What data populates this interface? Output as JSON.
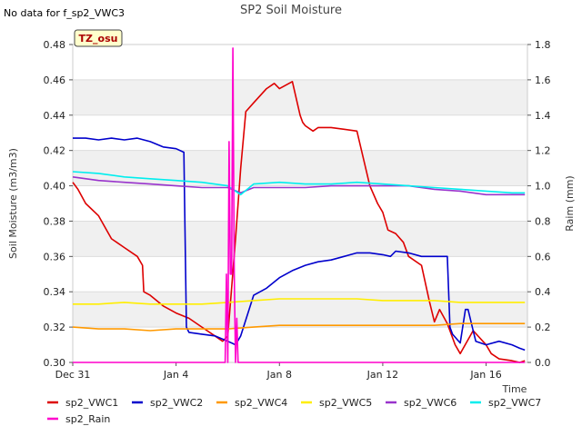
{
  "chart_data": {
    "type": "line",
    "title": "SP2 Soil Moisture",
    "nodata_note": "No data for f_sp2_VWC3",
    "site_label": "TZ_osu",
    "xlabel": "Time",
    "ylabel": "Soil Moisture (m3/m3)",
    "y2label": "Raim (mm)",
    "xlim": [
      0,
      17.6
    ],
    "ylim": [
      0.3,
      0.48
    ],
    "y2lim": [
      0.0,
      1.8
    ],
    "x_ticks": [
      {
        "value": 0,
        "label": "Dec 31"
      },
      {
        "value": 4,
        "label": "Jan 4"
      },
      {
        "value": 8,
        "label": "Jan 8"
      },
      {
        "value": 12,
        "label": "Jan 12"
      },
      {
        "value": 16,
        "label": "Jan 16"
      }
    ],
    "y_ticks": [
      "0.30",
      "0.32",
      "0.34",
      "0.36",
      "0.38",
      "0.40",
      "0.42",
      "0.44",
      "0.46",
      "0.48"
    ],
    "y2_ticks": [
      "0.0",
      "0.2",
      "0.4",
      "0.6",
      "0.8",
      "1.0",
      "1.2",
      "1.4",
      "1.6",
      "1.8"
    ],
    "grid": "horizontal bands",
    "legend_position": "bottom",
    "series": [
      {
        "name": "sp2_VWC1",
        "color": "#dd0000",
        "axis": "left",
        "x": [
          0,
          0.2,
          0.5,
          1,
          1.5,
          2,
          2.5,
          2.7,
          2.75,
          3,
          3.5,
          4,
          4.5,
          5,
          5.5,
          5.8,
          6,
          6.3,
          6.5,
          6.7,
          7,
          7.5,
          7.8,
          8,
          8.5,
          8.8,
          8.9,
          9,
          9.3,
          9.5,
          10,
          10.5,
          11,
          11.5,
          11.8,
          12,
          12.2,
          12.5,
          12.8,
          13,
          13.5,
          13.8,
          14,
          14.2,
          14.5,
          14.8,
          15,
          15.5,
          16,
          16.2,
          16.5,
          17,
          17.3,
          17.5
        ],
        "y": [
          0.402,
          0.398,
          0.39,
          0.383,
          0.37,
          0.365,
          0.36,
          0.355,
          0.34,
          0.338,
          0.332,
          0.328,
          0.325,
          0.32,
          0.315,
          0.312,
          0.315,
          0.37,
          0.41,
          0.442,
          0.447,
          0.455,
          0.458,
          0.455,
          0.459,
          0.44,
          0.436,
          0.434,
          0.431,
          0.433,
          0.433,
          0.432,
          0.431,
          0.4,
          0.39,
          0.385,
          0.375,
          0.373,
          0.368,
          0.36,
          0.355,
          0.335,
          0.323,
          0.33,
          0.322,
          0.31,
          0.305,
          0.318,
          0.31,
          0.305,
          0.302,
          0.301,
          0.3,
          0.301
        ]
      },
      {
        "name": "sp2_VWC2",
        "color": "#0000cc",
        "axis": "left",
        "x": [
          0,
          0.5,
          1,
          1.5,
          2,
          2.5,
          3,
          3.5,
          4,
          4.3,
          4.4,
          4.5,
          5,
          5.5,
          6,
          6.3,
          6.5,
          7,
          7.5,
          8,
          8.5,
          9,
          9.5,
          10,
          10.5,
          11,
          11.5,
          12,
          12.3,
          12.5,
          13,
          13.5,
          14,
          14.5,
          14.6,
          14.7,
          15,
          15.2,
          15.3,
          15.5,
          15.6,
          16,
          16.5,
          17,
          17.3,
          17.5
        ],
        "y": [
          0.427,
          0.427,
          0.426,
          0.427,
          0.426,
          0.427,
          0.425,
          0.422,
          0.421,
          0.419,
          0.32,
          0.317,
          0.316,
          0.315,
          0.312,
          0.31,
          0.315,
          0.338,
          0.342,
          0.348,
          0.352,
          0.355,
          0.357,
          0.358,
          0.36,
          0.362,
          0.362,
          0.361,
          0.36,
          0.363,
          0.362,
          0.36,
          0.36,
          0.36,
          0.32,
          0.316,
          0.311,
          0.33,
          0.33,
          0.318,
          0.312,
          0.31,
          0.312,
          0.31,
          0.308,
          0.307
        ]
      },
      {
        "name": "sp2_VWC4",
        "color": "#ff9900",
        "axis": "left",
        "x": [
          0,
          1,
          2,
          3,
          4,
          5,
          6,
          7,
          8,
          9,
          10,
          11,
          12,
          13,
          14,
          15,
          16,
          17,
          17.5
        ],
        "y": [
          0.32,
          0.319,
          0.319,
          0.318,
          0.319,
          0.319,
          0.319,
          0.32,
          0.321,
          0.321,
          0.321,
          0.321,
          0.321,
          0.321,
          0.321,
          0.322,
          0.322,
          0.322,
          0.322
        ]
      },
      {
        "name": "sp2_VWC5",
        "color": "#ffee00",
        "axis": "left",
        "x": [
          0,
          1,
          2,
          3,
          4,
          5,
          6,
          7,
          8,
          9,
          10,
          11,
          12,
          13,
          14,
          15,
          16,
          17,
          17.5
        ],
        "y": [
          0.333,
          0.333,
          0.334,
          0.333,
          0.333,
          0.333,
          0.334,
          0.335,
          0.336,
          0.336,
          0.336,
          0.336,
          0.335,
          0.335,
          0.335,
          0.334,
          0.334,
          0.334,
          0.334
        ]
      },
      {
        "name": "sp2_VWC6",
        "color": "#9933cc",
        "axis": "left",
        "x": [
          0,
          1,
          2,
          3,
          4,
          5,
          6,
          6.5,
          7,
          8,
          9,
          10,
          11,
          12,
          13,
          14,
          15,
          16,
          17,
          17.5
        ],
        "y": [
          0.405,
          0.403,
          0.402,
          0.401,
          0.4,
          0.399,
          0.399,
          0.396,
          0.399,
          0.399,
          0.399,
          0.4,
          0.4,
          0.4,
          0.4,
          0.398,
          0.397,
          0.395,
          0.395,
          0.395
        ]
      },
      {
        "name": "sp2_VWC7",
        "color": "#00eeee",
        "axis": "left",
        "x": [
          0,
          1,
          2,
          3,
          4,
          5,
          6,
          6.5,
          7,
          8,
          9,
          10,
          11,
          12,
          13,
          14,
          15,
          16,
          17,
          17.5
        ],
        "y": [
          0.408,
          0.407,
          0.405,
          0.404,
          0.403,
          0.402,
          0.4,
          0.395,
          0.401,
          0.402,
          0.401,
          0.401,
          0.402,
          0.401,
          0.4,
          0.399,
          0.398,
          0.397,
          0.396,
          0.396
        ]
      },
      {
        "name": "sp2_Rain",
        "color": "#ff00cc",
        "axis": "right",
        "x": [
          0,
          5.9,
          5.95,
          6.0,
          6.05,
          6.1,
          6.15,
          6.2,
          6.25,
          6.3,
          6.35,
          6.4,
          6.45,
          6.5,
          6.55,
          6.6,
          6.65,
          6.7,
          17.5
        ],
        "y": [
          0,
          0,
          0.5,
          0,
          1.25,
          0.5,
          0.5,
          1.78,
          0.5,
          0,
          0.25,
          0,
          0,
          0,
          0,
          0,
          0,
          0,
          0
        ]
      }
    ]
  }
}
